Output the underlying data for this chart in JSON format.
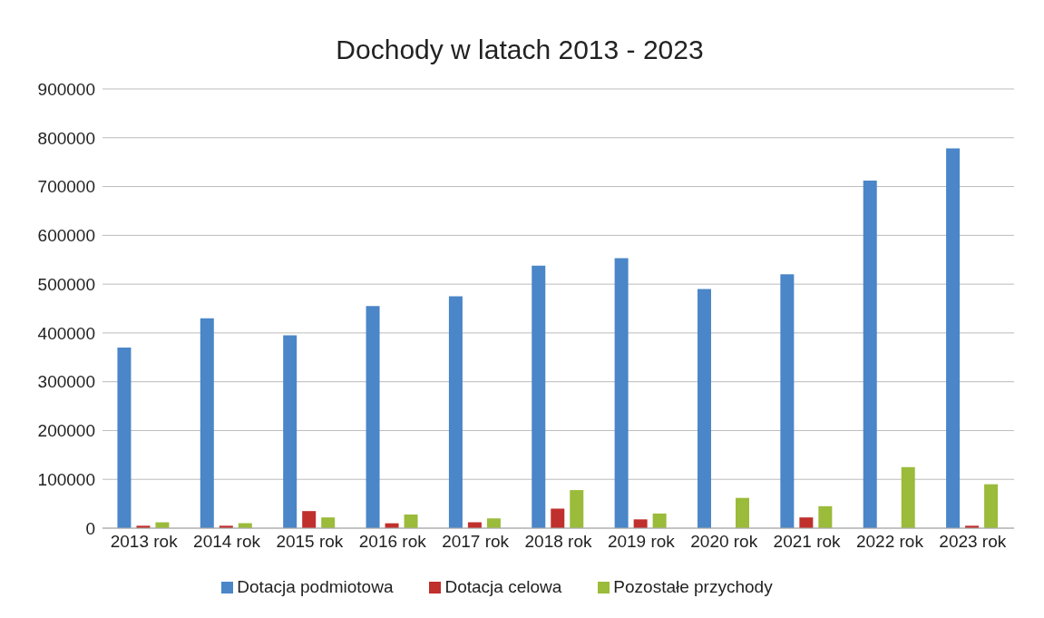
{
  "chart_data": {
    "type": "bar",
    "title": "Dochody w latach 2013 - 2023",
    "categories": [
      "2013 rok",
      "2014 rok",
      "2015 rok",
      "2016 rok",
      "2017 rok",
      "2018 rok",
      "2019 rok",
      "2020 rok",
      "2021 rok",
      "2022 rok",
      "2023 rok"
    ],
    "series": [
      {
        "name": "Dotacja podmiotowa",
        "color": "#4a86c8",
        "values": [
          370000,
          430000,
          395000,
          455000,
          475000,
          538000,
          553000,
          490000,
          520000,
          712000,
          778000
        ]
      },
      {
        "name": "Dotacja celowa",
        "color": "#c0302c",
        "values": [
          5000,
          5000,
          35000,
          10000,
          12000,
          40000,
          18000,
          0,
          22000,
          0,
          5000
        ]
      },
      {
        "name": "Pozostałe przychody",
        "color": "#9bbb3a",
        "values": [
          12000,
          10000,
          22000,
          28000,
          20000,
          78000,
          30000,
          62000,
          45000,
          125000,
          90000
        ]
      }
    ],
    "ylim": [
      0,
      900000
    ],
    "yticks": [
      0,
      100000,
      200000,
      300000,
      400000,
      500000,
      600000,
      700000,
      800000,
      900000
    ],
    "grid": "y",
    "legend": "bottom"
  }
}
